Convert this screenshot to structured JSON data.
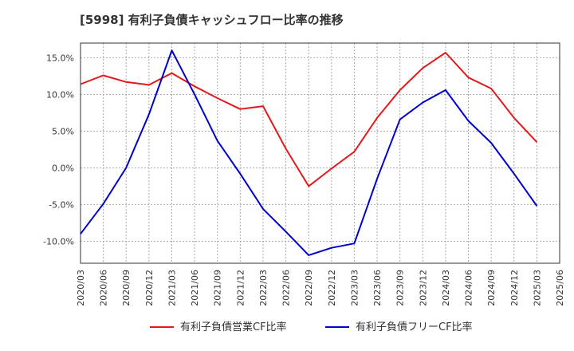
{
  "chart_data": {
    "type": "line",
    "title": "[5998]  有利子負債キャッシュフロー比率の推移",
    "xlabel": "",
    "ylabel": "",
    "x": [
      "2020/03",
      "2020/06",
      "2020/09",
      "2020/12",
      "2021/03",
      "2021/06",
      "2021/09",
      "2021/12",
      "2022/03",
      "2022/06",
      "2022/09",
      "2022/12",
      "2023/03",
      "2023/06",
      "2023/09",
      "2023/12",
      "2024/03",
      "2024/06",
      "2024/09",
      "2024/12",
      "2025/03",
      "2025/06"
    ],
    "ylim": [
      -13,
      17
    ],
    "yticks": [
      "15.0%",
      "10.0%",
      "5.0%",
      "0.0%",
      "-5.0%",
      "-10.0%"
    ],
    "ytick_values": [
      15,
      10,
      5,
      0,
      -5,
      -10
    ],
    "grid": true,
    "legend_position": "bottom",
    "series": [
      {
        "name": "有利子負債営業CF比率",
        "color": "#e31a1c",
        "values": [
          11.4,
          12.6,
          11.7,
          11.3,
          12.9,
          11.1,
          9.5,
          8.0,
          8.4,
          2.6,
          -2.5,
          -0.1,
          2.2,
          6.8,
          10.6,
          13.6,
          15.7,
          12.3,
          10.8,
          6.8,
          3.5,
          null
        ]
      },
      {
        "name": "有利子負債フリーCF比率",
        "color": "#0000cc",
        "values": [
          -9.0,
          -4.9,
          0.0,
          7.3,
          16.0,
          10.0,
          3.7,
          -0.8,
          -5.6,
          -8.7,
          -11.9,
          -10.9,
          -10.3,
          -1.5,
          6.6,
          8.9,
          10.6,
          6.4,
          3.4,
          -0.8,
          -5.2,
          null
        ]
      }
    ]
  }
}
